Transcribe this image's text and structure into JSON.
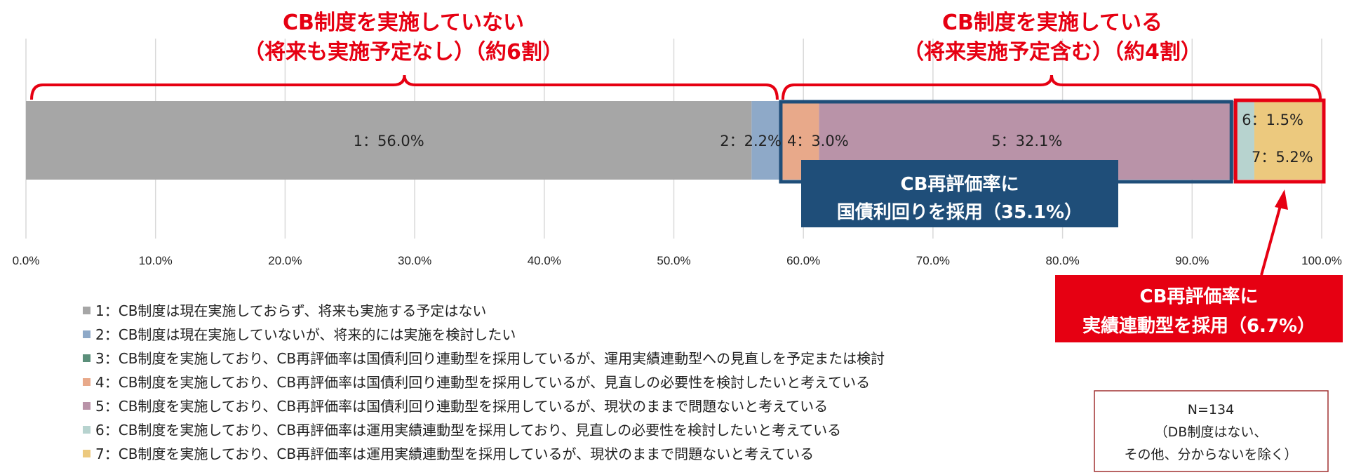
{
  "chart_data": {
    "type": "bar",
    "orientation": "horizontal-stacked",
    "categories": [
      ""
    ],
    "series": [
      {
        "name": "1：CB制度は現在実施しておらず、将来も実施する予定はない",
        "values": [
          56.0
        ],
        "label": "1：56.0%",
        "color": "#a6a6a6"
      },
      {
        "name": "2：CB制度は現在実施していないが、将来的には実施を検討したい",
        "values": [
          2.2
        ],
        "label": "2：2.2%",
        "color": "#8ea9c8"
      },
      {
        "name": "3：CB制度を実施しており、CB再評価率は国債利回り連動型を採用しているが、運用実績連動型への見直しを予定または検討",
        "values": [
          0.0
        ],
        "label": "",
        "color": "#5b8f7a"
      },
      {
        "name": "4：CB制度を実施しており、CB再評価率は国債利回り連動型を採用しているが、見直しの必要性を検討したいと考えている",
        "values": [
          3.0
        ],
        "label": "4：3.0%",
        "color": "#e8a98a"
      },
      {
        "name": "5：CB制度を実施しており、CB再評価率は国債利回り連動型を採用しているが、現状のままで問題ないと考えている",
        "values": [
          32.1
        ],
        "label": "5：32.1%",
        "color": "#b993a8"
      },
      {
        "name": "6：CB制度を実施しており、CB再評価率は運用実績連動型を採用しており、見直しの必要性を検討したいと考えている",
        "values": [
          1.5
        ],
        "label": "6：1.5%",
        "color": "#b7d3cf"
      },
      {
        "name": "7：CB制度を実施しており、CB再評価率は運用実績連動型を採用しているが、現状のままで問題ないと考えている",
        "values": [
          5.2
        ],
        "label": "7：5.2%",
        "color": "#ecc97e"
      }
    ],
    "xlim": [
      0,
      100
    ],
    "xticks": [
      "0.0%",
      "10.0%",
      "20.0%",
      "30.0%",
      "40.0%",
      "50.0%",
      "60.0%",
      "70.0%",
      "80.0%",
      "90.0%",
      "100.0%"
    ],
    "grid": true,
    "legend_position": "bottom-left",
    "annotations": {
      "left_brace": {
        "line1": "CB制度を実施していない",
        "line2": "（将来も実施予定なし）（約6割）",
        "from": 0,
        "to": 58.2
      },
      "right_brace": {
        "line1": "CB制度を実施している",
        "line2": "（将来実施予定含む）（約4割）",
        "from": 58.2,
        "to": 100
      },
      "navy_callout": {
        "line1": "CB再評価率に",
        "line2": "国債利回りを採用（35.1%）",
        "color": "#1f4e79"
      },
      "red_callout": {
        "line1": "CB再評価率に",
        "line2": "実績連動型を採用（6.7%）",
        "color": "#e60012"
      },
      "note": {
        "line1": "N=134",
        "line2": "（DB制度はない、",
        "line3": "その他、分からないを除く）"
      }
    }
  }
}
